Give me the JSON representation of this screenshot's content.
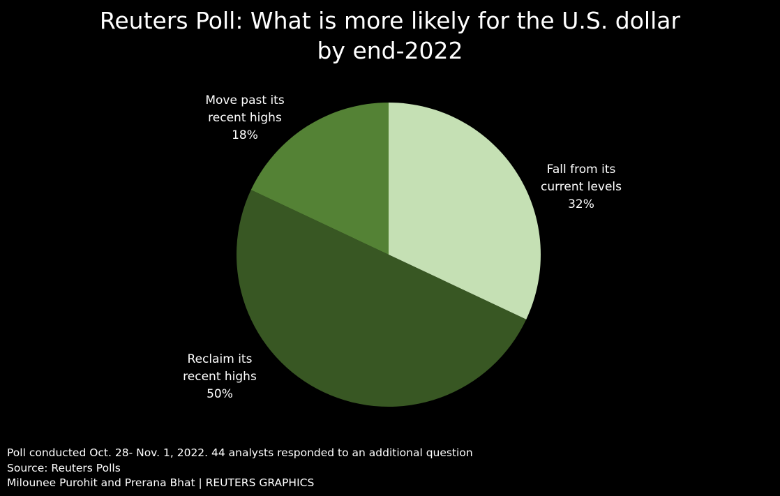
{
  "title": {
    "line1": "Reuters Poll: What is more likely for the U.S. dollar",
    "line2": "by end-2022"
  },
  "chart_data": {
    "type": "pie",
    "start_angle_deg": 0,
    "direction": "clockwise",
    "slices": [
      {
        "label_lines": [
          "Fall from its",
          "current levels",
          "32%"
        ],
        "name": "Fall from its current levels",
        "value": 32,
        "color": "#c5e0b4"
      },
      {
        "label_lines": [
          "Reclaim its",
          "recent highs",
          "50%"
        ],
        "name": "Reclaim its recent highs",
        "value": 50,
        "color": "#385723"
      },
      {
        "label_lines": [
          "Move past its",
          "recent highs",
          "18%"
        ],
        "name": "Move past its recent highs",
        "value": 18,
        "color": "#548235"
      }
    ]
  },
  "footer": {
    "note": "Poll conducted Oct. 28- Nov. 1, 2022. 44 analysts responded to an additional question",
    "source": "Source: Reuters Polls",
    "credit": "Milounee Purohit and Prerana Bhat | REUTERS GRAPHICS"
  },
  "colors": {
    "background": "#000000",
    "text": "#ffffff"
  }
}
